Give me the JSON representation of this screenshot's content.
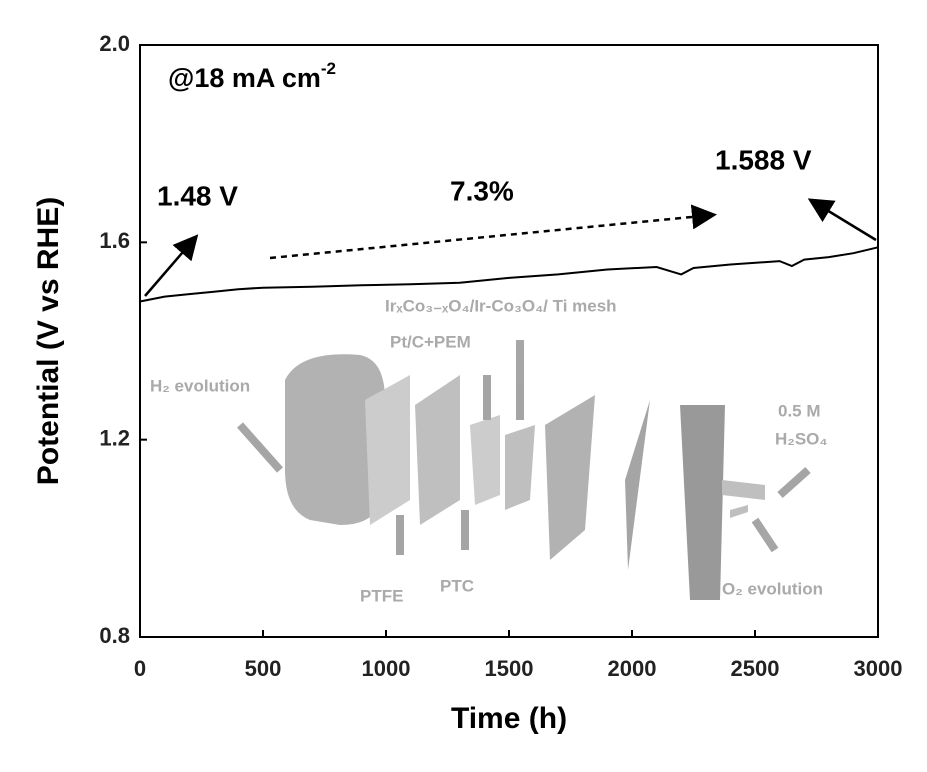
{
  "chart_data": {
    "type": "line",
    "x_label": "Time (h)",
    "y_label": "Potential (V vs RHE)",
    "condition": {
      "text": "@18 mA cm",
      "superscript": "-2"
    },
    "annotations": [
      "1.48 V",
      "7.3%",
      "1.588 V"
    ],
    "inset_labels": [
      "H₂ evolution",
      "IrₓCo₃₋ₓO₄/Ir-Co₃O₄/ Ti mesh",
      "Pt/C+PEM",
      "PTFE",
      "PTC",
      "0.5 M",
      "H₂SO₄",
      "O₂ evolution"
    ],
    "x": [
      0,
      100,
      200,
      300,
      400,
      500,
      700,
      900,
      1100,
      1300,
      1500,
      1700,
      1900,
      2100,
      2200,
      2250,
      2400,
      2600,
      2650,
      2700,
      2800,
      2900,
      3000
    ],
    "series": [
      {
        "name": "Potential",
        "color": "#000000",
        "values": [
          1.48,
          1.49,
          1.495,
          1.5,
          1.505,
          1.508,
          1.51,
          1.513,
          1.515,
          1.518,
          1.528,
          1.535,
          1.545,
          1.55,
          1.535,
          1.548,
          1.555,
          1.562,
          1.552,
          1.565,
          1.57,
          1.578,
          1.59
        ]
      }
    ],
    "xlim": [
      0,
      3000
    ],
    "xticks": [
      0,
      500,
      1000,
      1500,
      2000,
      2500,
      3000
    ],
    "ylim": [
      0.8,
      2.0
    ],
    "yticks": [
      0.8,
      1.2,
      1.6,
      {
        "value": 2.0,
        "label": "2.0"
      }
    ]
  }
}
